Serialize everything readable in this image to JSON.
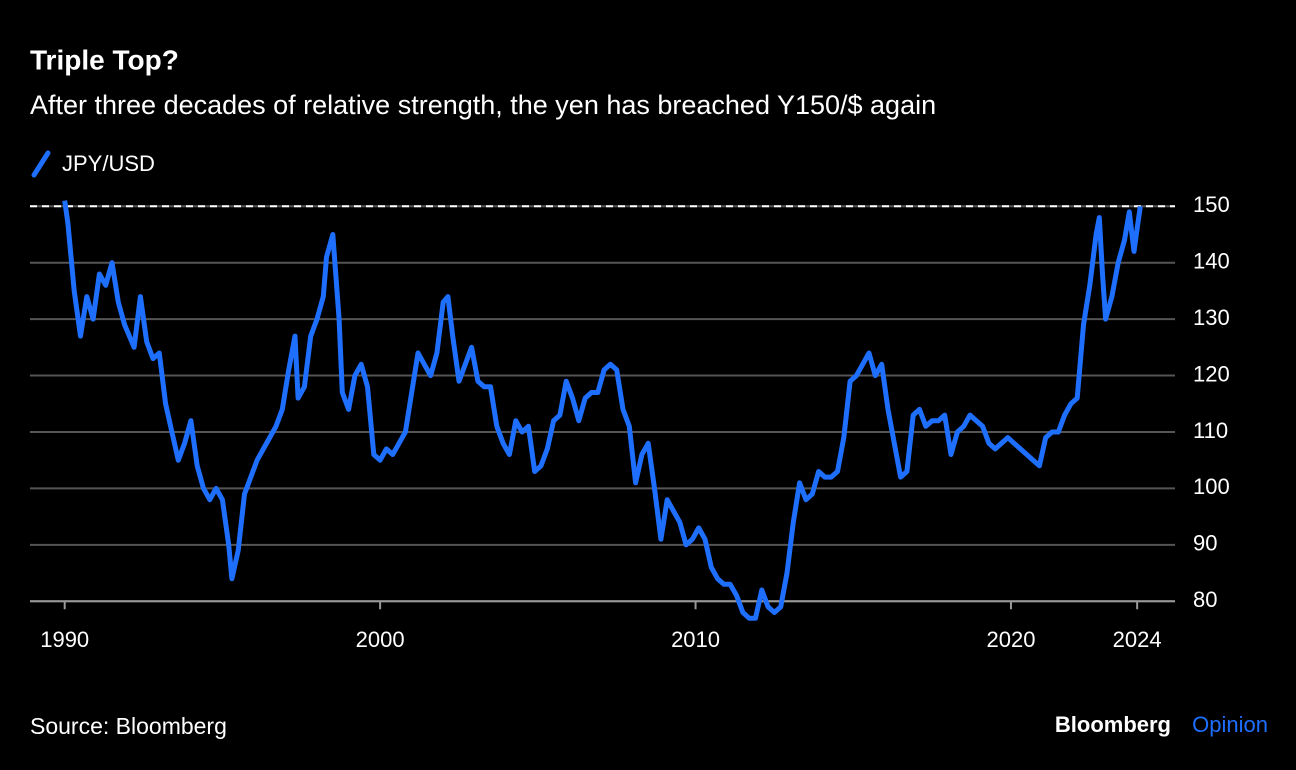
{
  "chart_data": {
    "type": "line",
    "title": "Triple Top?",
    "subtitle": "After three decades of relative strength, the yen has breached Y150/$ again",
    "source": "Source: Bloomberg",
    "brand": "Bloomberg",
    "brand_accent": "Opinion",
    "reference_line": 150,
    "grid": true,
    "xlim": [
      1988.9,
      2025.2
    ],
    "xticks": [
      1990,
      2000,
      2010,
      2020,
      2024
    ],
    "ylim": [
      76.5,
      152
    ],
    "yticks": [
      80,
      90,
      100,
      110,
      120,
      130,
      140,
      150
    ],
    "x": [
      1990.0,
      1990.1,
      1990.3,
      1990.5,
      1990.7,
      1990.9,
      1991.1,
      1991.3,
      1991.5,
      1991.7,
      1991.9,
      1992.2,
      1992.4,
      1992.6,
      1992.8,
      1993.0,
      1993.2,
      1993.4,
      1993.6,
      1993.8,
      1994.0,
      1994.2,
      1994.4,
      1994.6,
      1994.8,
      1995.0,
      1995.2,
      1995.3,
      1995.5,
      1995.7,
      1995.9,
      1996.1,
      1996.3,
      1996.5,
      1996.7,
      1996.9,
      1997.1,
      1997.3,
      1997.4,
      1997.6,
      1997.8,
      1998.0,
      1998.2,
      1998.3,
      1998.5,
      1998.7,
      1998.8,
      1999.0,
      1999.2,
      1999.4,
      1999.6,
      1999.8,
      2000.0,
      2000.2,
      2000.4,
      2000.6,
      2000.8,
      2001.0,
      2001.2,
      2001.4,
      2001.6,
      2001.8,
      2002.0,
      2002.15,
      2002.3,
      2002.5,
      2002.7,
      2002.9,
      2003.1,
      2003.3,
      2003.5,
      2003.7,
      2003.9,
      2004.1,
      2004.3,
      2004.5,
      2004.7,
      2004.9,
      2005.1,
      2005.3,
      2005.5,
      2005.7,
      2005.9,
      2006.1,
      2006.3,
      2006.5,
      2006.7,
      2006.9,
      2007.1,
      2007.3,
      2007.5,
      2007.7,
      2007.9,
      2008.1,
      2008.3,
      2008.5,
      2008.7,
      2008.9,
      2009.1,
      2009.3,
      2009.5,
      2009.7,
      2009.9,
      2010.1,
      2010.3,
      2010.5,
      2010.7,
      2010.9,
      2011.1,
      2011.3,
      2011.5,
      2011.7,
      2011.9,
      2012.1,
      2012.3,
      2012.5,
      2012.7,
      2012.9,
      2013.1,
      2013.3,
      2013.5,
      2013.7,
      2013.9,
      2014.1,
      2014.3,
      2014.5,
      2014.7,
      2014.9,
      2015.1,
      2015.3,
      2015.5,
      2015.7,
      2015.9,
      2016.1,
      2016.3,
      2016.5,
      2016.7,
      2016.9,
      2017.1,
      2017.3,
      2017.5,
      2017.7,
      2017.9,
      2018.1,
      2018.3,
      2018.5,
      2018.7,
      2018.9,
      2019.1,
      2019.3,
      2019.5,
      2019.7,
      2019.9,
      2020.1,
      2020.3,
      2020.5,
      2020.7,
      2020.9,
      2021.1,
      2021.3,
      2021.5,
      2021.7,
      2021.9,
      2022.1,
      2022.3,
      2022.5,
      2022.7,
      2022.8,
      2022.9,
      2023.0,
      2023.2,
      2023.4,
      2023.6,
      2023.75,
      2023.9,
      2024.0,
      2024.1
    ],
    "series": [
      {
        "name": "JPY/USD",
        "color": "#1f6fff",
        "values": [
          151,
          147,
          135,
          127,
          134,
          130,
          138,
          136,
          140,
          133,
          129,
          125,
          134,
          126,
          123,
          124,
          115,
          110,
          105,
          108,
          112,
          104,
          100,
          98,
          100,
          98,
          90,
          84,
          89,
          99,
          102,
          105,
          107,
          109,
          111,
          114,
          121,
          127,
          116,
          118,
          127,
          130,
          134,
          141,
          145,
          130,
          117,
          114,
          120,
          122,
          118,
          106,
          105,
          107,
          106,
          108,
          110,
          117,
          124,
          122,
          120,
          124,
          133,
          134,
          127,
          119,
          122,
          125,
          119,
          118,
          118,
          111,
          108,
          106,
          112,
          110,
          111,
          103,
          104,
          107,
          112,
          113,
          119,
          116,
          112,
          116,
          117,
          117,
          121,
          122,
          121,
          114,
          111,
          101,
          106,
          108,
          100,
          91,
          98,
          96,
          94,
          90,
          91,
          93,
          91,
          86,
          84,
          83,
          83,
          81,
          78,
          77,
          77,
          82,
          79,
          78,
          79,
          85,
          94,
          101,
          98,
          99,
          103,
          102,
          102,
          103,
          109,
          119,
          120,
          122,
          124,
          120,
          122,
          114,
          108,
          102,
          103,
          113,
          114,
          111,
          112,
          112,
          113,
          106,
          110,
          111,
          113,
          112,
          111,
          108,
          107,
          108,
          109,
          108,
          107,
          106,
          105,
          104,
          109,
          110,
          110,
          113,
          115,
          116,
          129,
          136,
          145,
          148,
          138,
          130,
          134,
          140,
          144,
          149,
          142,
          146,
          150
        ]
      }
    ]
  }
}
